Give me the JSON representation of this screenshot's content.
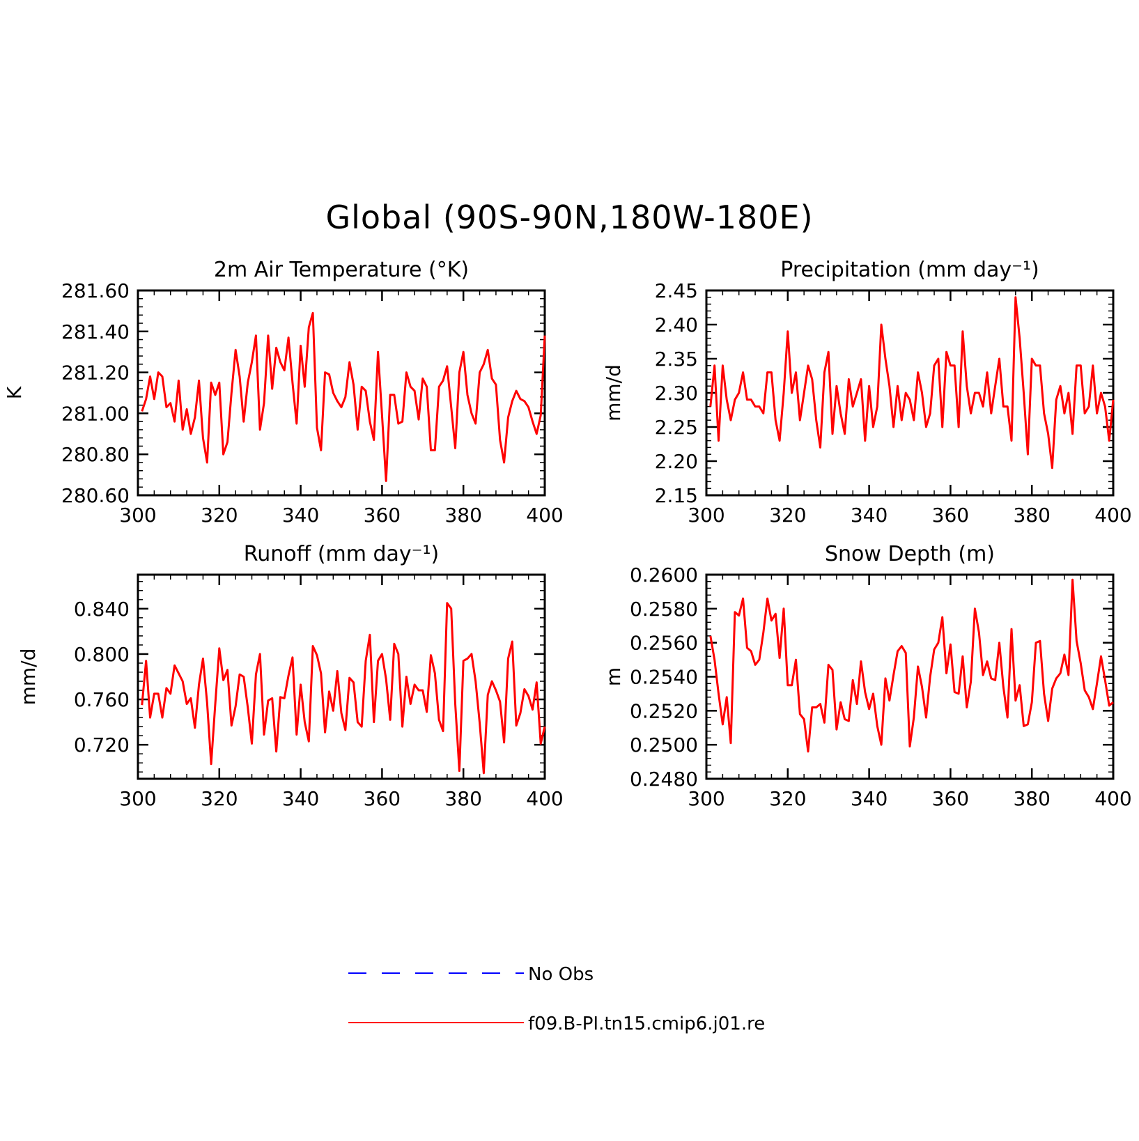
{
  "title": "Global (90S-90N,180W-180E)",
  "legend": [
    {
      "label": "No Obs",
      "color": "#0000ff",
      "dash": true
    },
    {
      "label": "f09.B-PI.tn15.cmip6.j01.re",
      "color": "#ff0000",
      "dash": false
    }
  ],
  "chart_data": [
    {
      "type": "line",
      "title": "2m Air Temperature (°K)",
      "ylabel": "K",
      "xlim": [
        300,
        400
      ],
      "ylim": [
        280.6,
        281.6
      ],
      "xticks": [
        "300",
        "320",
        "340",
        "360",
        "380",
        "400"
      ],
      "yticks": [
        "280.60",
        "280.80",
        "281.00",
        "281.20",
        "281.40",
        "281.60"
      ],
      "x_start": 301,
      "series": [
        {
          "color": "#ff0000",
          "values": [
            281.01,
            281.07,
            281.18,
            281.07,
            281.2,
            281.18,
            281.03,
            281.05,
            280.96,
            281.16,
            280.92,
            281.02,
            280.9,
            280.98,
            281.16,
            280.88,
            280.76,
            281.15,
            281.09,
            281.15,
            280.8,
            280.86,
            281.1,
            281.31,
            281.18,
            280.96,
            281.15,
            281.25,
            281.38,
            280.92,
            281.05,
            281.38,
            281.12,
            281.32,
            281.25,
            281.21,
            281.37,
            281.15,
            280.95,
            281.33,
            281.13,
            281.42,
            281.49,
            280.93,
            280.82,
            281.2,
            281.19,
            281.1,
            281.06,
            281.03,
            281.08,
            281.25,
            281.14,
            280.92,
            281.13,
            281.11,
            280.96,
            280.87,
            281.3,
            280.99,
            280.67,
            281.09,
            281.09,
            280.95,
            280.96,
            281.2,
            281.13,
            281.11,
            280.97,
            281.17,
            281.13,
            280.82,
            280.82,
            281.13,
            281.16,
            281.23,
            281.03,
            280.83,
            281.2,
            281.3,
            281.09,
            281.0,
            280.95,
            281.2,
            281.24,
            281.31,
            281.17,
            281.14,
            280.87,
            280.76,
            280.98,
            281.06,
            281.11,
            281.07,
            281.06,
            281.03,
            280.96,
            280.9,
            280.99,
            281.38
          ]
        }
      ]
    },
    {
      "type": "line",
      "title": "Precipitation (mm day⁻¹)",
      "ylabel": "mm/d",
      "xlim": [
        300,
        400
      ],
      "ylim": [
        2.15,
        2.45
      ],
      "xticks": [
        "300",
        "320",
        "340",
        "360",
        "380",
        "400"
      ],
      "yticks": [
        "2.15",
        "2.20",
        "2.25",
        "2.30",
        "2.35",
        "2.40",
        "2.45"
      ],
      "x_start": 301,
      "series": [
        {
          "color": "#ff0000",
          "values": [
            2.28,
            2.34,
            2.23,
            2.34,
            2.29,
            2.26,
            2.29,
            2.3,
            2.33,
            2.29,
            2.29,
            2.28,
            2.28,
            2.27,
            2.33,
            2.33,
            2.26,
            2.23,
            2.3,
            2.39,
            2.3,
            2.33,
            2.26,
            2.3,
            2.34,
            2.32,
            2.26,
            2.22,
            2.33,
            2.36,
            2.24,
            2.31,
            2.27,
            2.24,
            2.32,
            2.28,
            2.3,
            2.32,
            2.23,
            2.31,
            2.25,
            2.28,
            2.4,
            2.35,
            2.31,
            2.25,
            2.31,
            2.26,
            2.3,
            2.29,
            2.26,
            2.33,
            2.3,
            2.25,
            2.27,
            2.34,
            2.35,
            2.25,
            2.36,
            2.34,
            2.34,
            2.25,
            2.39,
            2.31,
            2.27,
            2.3,
            2.3,
            2.28,
            2.33,
            2.27,
            2.31,
            2.35,
            2.28,
            2.28,
            2.23,
            2.44,
            2.38,
            2.3,
            2.21,
            2.35,
            2.34,
            2.34,
            2.27,
            2.24,
            2.19,
            2.29,
            2.31,
            2.27,
            2.3,
            2.24,
            2.34,
            2.34,
            2.27,
            2.28,
            2.34,
            2.27,
            2.3,
            2.28,
            2.23,
            2.29
          ]
        }
      ]
    },
    {
      "type": "line",
      "title": "Runoff (mm day⁻¹)",
      "ylabel": "mm/d",
      "xlim": [
        300,
        400
      ],
      "ylim": [
        0.69,
        0.87
      ],
      "xticks": [
        "300",
        "320",
        "340",
        "360",
        "380",
        "400"
      ],
      "yticks": [
        "0.720",
        "0.760",
        "0.800",
        "0.840"
      ],
      "x_start": 301,
      "series": [
        {
          "color": "#ff0000",
          "values": [
            0.755,
            0.794,
            0.744,
            0.765,
            0.765,
            0.744,
            0.77,
            0.765,
            0.79,
            0.783,
            0.776,
            0.756,
            0.761,
            0.735,
            0.773,
            0.796,
            0.757,
            0.703,
            0.756,
            0.805,
            0.777,
            0.786,
            0.737,
            0.754,
            0.782,
            0.78,
            0.753,
            0.721,
            0.782,
            0.8,
            0.729,
            0.759,
            0.761,
            0.714,
            0.762,
            0.761,
            0.781,
            0.797,
            0.729,
            0.773,
            0.74,
            0.723,
            0.807,
            0.799,
            0.783,
            0.731,
            0.767,
            0.75,
            0.785,
            0.748,
            0.733,
            0.779,
            0.775,
            0.74,
            0.736,
            0.794,
            0.817,
            0.74,
            0.794,
            0.8,
            0.778,
            0.742,
            0.809,
            0.8,
            0.736,
            0.78,
            0.756,
            0.773,
            0.768,
            0.768,
            0.749,
            0.799,
            0.783,
            0.742,
            0.732,
            0.845,
            0.84,
            0.756,
            0.697,
            0.794,
            0.796,
            0.8,
            0.776,
            0.739,
            0.695,
            0.764,
            0.776,
            0.768,
            0.758,
            0.722,
            0.796,
            0.811,
            0.737,
            0.748,
            0.769,
            0.763,
            0.751,
            0.775,
            0.721,
            0.736
          ]
        }
      ]
    },
    {
      "type": "line",
      "title": "Snow Depth (m)",
      "ylabel": "m",
      "xlim": [
        300,
        400
      ],
      "ylim": [
        0.248,
        0.26
      ],
      "xticks": [
        "300",
        "320",
        "340",
        "360",
        "380",
        "400"
      ],
      "yticks": [
        "0.2480",
        "0.2500",
        "0.2520",
        "0.2540",
        "0.2560",
        "0.2580",
        "0.2600"
      ],
      "x_start": 301,
      "series": [
        {
          "color": "#ff0000",
          "values": [
            0.2564,
            0.255,
            0.253,
            0.2512,
            0.2528,
            0.2501,
            0.2578,
            0.2576,
            0.2586,
            0.2557,
            0.2555,
            0.2547,
            0.255,
            0.2566,
            0.2586,
            0.2573,
            0.2577,
            0.2551,
            0.258,
            0.2535,
            0.2535,
            0.255,
            0.2518,
            0.2515,
            0.2496,
            0.2522,
            0.2522,
            0.2524,
            0.2513,
            0.2547,
            0.2544,
            0.2509,
            0.2525,
            0.2515,
            0.2514,
            0.2538,
            0.2524,
            0.2549,
            0.2531,
            0.2521,
            0.253,
            0.2511,
            0.25,
            0.2539,
            0.2526,
            0.2541,
            0.2555,
            0.2558,
            0.2554,
            0.2499,
            0.2516,
            0.2546,
            0.2534,
            0.2516,
            0.254,
            0.2556,
            0.256,
            0.2575,
            0.2542,
            0.2559,
            0.2531,
            0.253,
            0.2552,
            0.2522,
            0.2537,
            0.258,
            0.2566,
            0.2541,
            0.2549,
            0.2539,
            0.2538,
            0.256,
            0.2534,
            0.2516,
            0.2568,
            0.2526,
            0.2535,
            0.2511,
            0.2512,
            0.2525,
            0.256,
            0.2561,
            0.253,
            0.2514,
            0.2533,
            0.2539,
            0.2542,
            0.2553,
            0.2541,
            0.2597,
            0.2561,
            0.2548,
            0.2532,
            0.2528,
            0.2521,
            0.2536,
            0.2552,
            0.2538,
            0.2523,
            0.2525
          ]
        }
      ]
    }
  ]
}
